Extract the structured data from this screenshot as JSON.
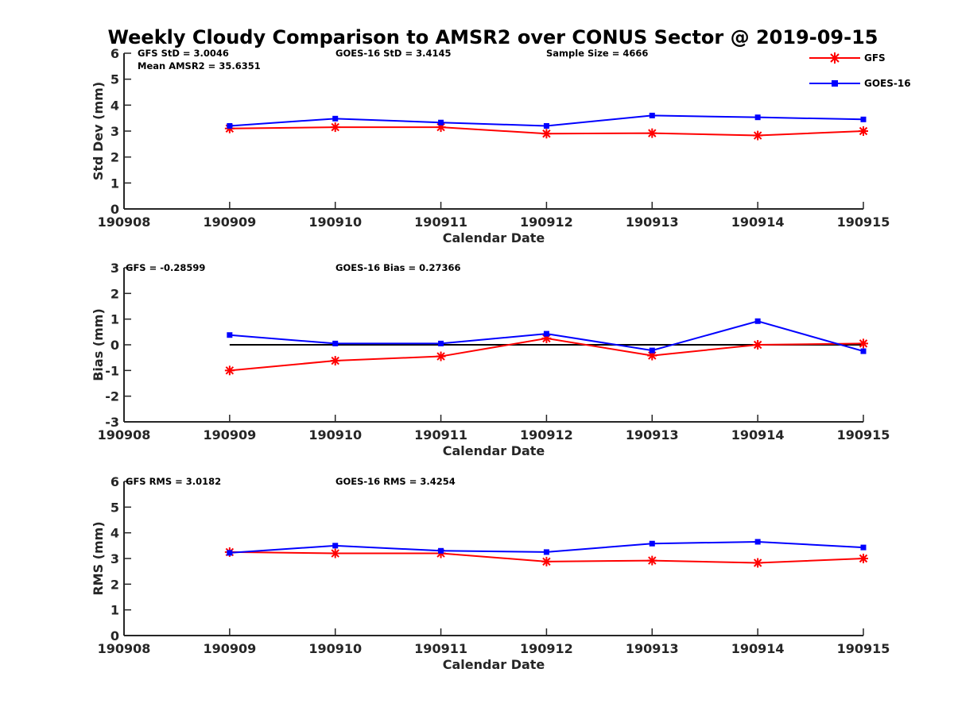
{
  "title": "Weekly Cloudy Comparison to AMSR2 over CONUS Sector @ 2019-09-15",
  "legend": {
    "location": "top-right",
    "entries": [
      {
        "name": "GFS",
        "color": "#ff0000",
        "marker": "asterisk"
      },
      {
        "name": "GOES-16",
        "color": "#0000ff",
        "marker": "square"
      }
    ]
  },
  "chart_data": [
    {
      "type": "line",
      "id": "std",
      "xlabel": "Calendar Date",
      "ylabel": "Std Dev (mm)",
      "categories": [
        "190908",
        "190909",
        "190910",
        "190911",
        "190912",
        "190913",
        "190914",
        "190915"
      ],
      "ylim": [
        0,
        6
      ],
      "yticks": [
        "0",
        "1",
        "2",
        "3",
        "4",
        "5",
        "6"
      ],
      "zero_line": false,
      "annotations": [
        {
          "id": "a1",
          "text": "GFS StD = 3.0046"
        },
        {
          "id": "a2",
          "text": "GOES-16 StD = 3.4145"
        },
        {
          "id": "a3",
          "text": "Sample Size = 4666"
        },
        {
          "id": "a4",
          "text": "Mean AMSR2 = 35.6351"
        }
      ],
      "series": [
        {
          "name": "GFS",
          "color": "#ff0000",
          "marker": "asterisk",
          "values": [
            null,
            3.1,
            3.15,
            3.15,
            2.9,
            2.92,
            2.83,
            3.0
          ]
        },
        {
          "name": "GOES-16",
          "color": "#0000ff",
          "marker": "square",
          "values": [
            null,
            3.2,
            3.48,
            3.33,
            3.2,
            3.6,
            3.53,
            3.45
          ]
        }
      ]
    },
    {
      "type": "line",
      "id": "bias",
      "xlabel": "Calendar Date",
      "ylabel": "Bias (mm)",
      "categories": [
        "190908",
        "190909",
        "190910",
        "190911",
        "190912",
        "190913",
        "190914",
        "190915"
      ],
      "ylim": [
        -3,
        3
      ],
      "yticks": [
        "-3",
        "-2",
        "-1",
        "0",
        "1",
        "2",
        "3"
      ],
      "zero_line": true,
      "annotations": [
        {
          "id": "b1",
          "text": "GFS = -0.28599"
        },
        {
          "id": "b2",
          "text": "GOES-16 Bias  = 0.27366"
        }
      ],
      "series": [
        {
          "name": "GFS",
          "color": "#ff0000",
          "marker": "asterisk",
          "values": [
            null,
            -1.0,
            -0.62,
            -0.45,
            0.25,
            -0.42,
            0.0,
            0.05
          ]
        },
        {
          "name": "GOES-16",
          "color": "#0000ff",
          "marker": "square",
          "values": [
            null,
            0.38,
            0.05,
            0.05,
            0.43,
            -0.22,
            0.92,
            -0.25
          ]
        }
      ]
    },
    {
      "type": "line",
      "id": "rms",
      "xlabel": "Calendar Date",
      "ylabel": "RMS (mm)",
      "categories": [
        "190908",
        "190909",
        "190910",
        "190911",
        "190912",
        "190913",
        "190914",
        "190915"
      ],
      "ylim": [
        0,
        6
      ],
      "yticks": [
        "0",
        "1",
        "2",
        "3",
        "4",
        "5",
        "6"
      ],
      "zero_line": false,
      "annotations": [
        {
          "id": "c1",
          "text": "GFS RMS = 3.0182"
        },
        {
          "id": "c2",
          "text": "GOES-16 RMS = 3.4254"
        }
      ],
      "series": [
        {
          "name": "GFS",
          "color": "#ff0000",
          "marker": "asterisk",
          "values": [
            null,
            3.25,
            3.2,
            3.2,
            2.88,
            2.92,
            2.83,
            3.0
          ]
        },
        {
          "name": "GOES-16",
          "color": "#0000ff",
          "marker": "square",
          "values": [
            null,
            3.22,
            3.5,
            3.3,
            3.25,
            3.58,
            3.65,
            3.43
          ]
        }
      ]
    }
  ]
}
